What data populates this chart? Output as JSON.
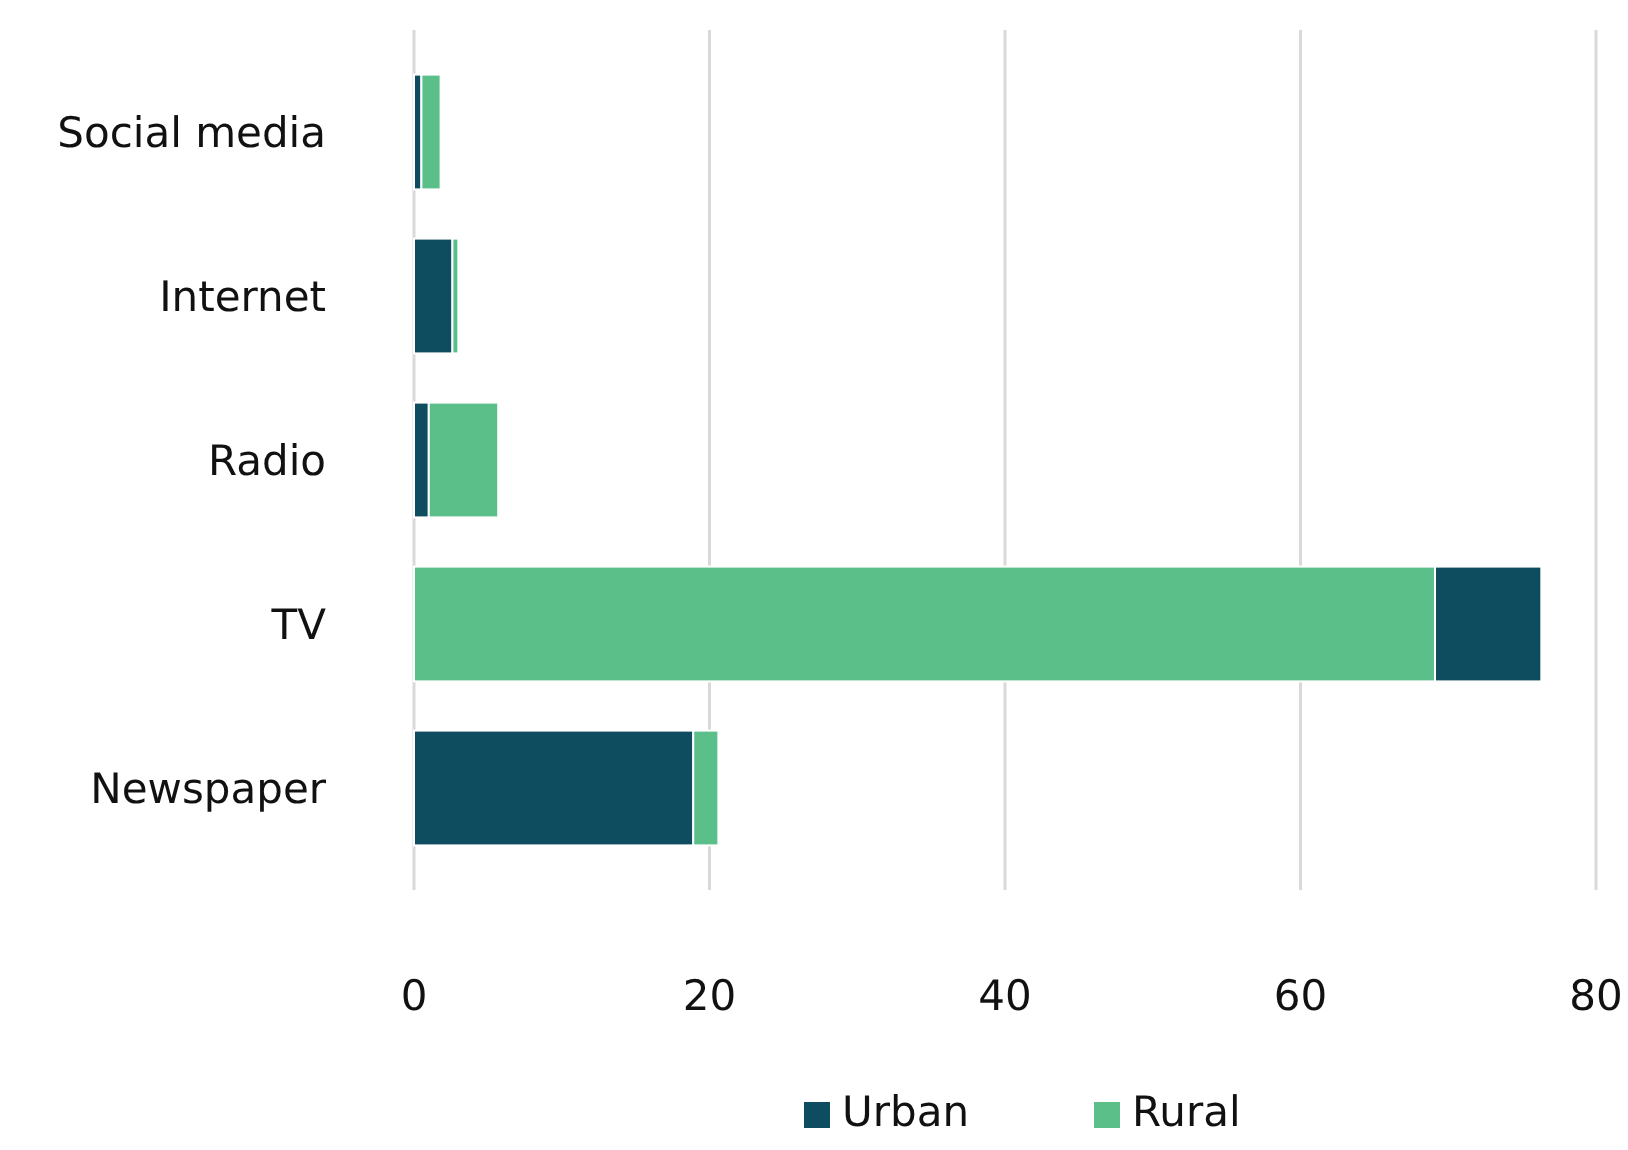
{
  "chart_data": {
    "type": "bar",
    "orientation": "horizontal",
    "categories": [
      "Social media",
      "Internet",
      "Radio",
      "TV",
      "Newspaper"
    ],
    "series": [
      {
        "name": "Urban",
        "color": "#0e4d60",
        "values": [
          0.5,
          2.6,
          1,
          7.2,
          18.9
        ],
        "base": [
          0,
          0,
          0,
          69.1,
          0
        ]
      },
      {
        "name": "Rural",
        "color": "#5bbf8a",
        "values": [
          1.3,
          0.4,
          4.7,
          69.1,
          1.7
        ],
        "base": [
          0.5,
          2.6,
          1,
          0,
          18.9
        ]
      }
    ],
    "xlim": [
      0,
      80
    ],
    "xticks": [
      0,
      20,
      40,
      60,
      80
    ],
    "grid": "x",
    "legend": "bottom"
  }
}
